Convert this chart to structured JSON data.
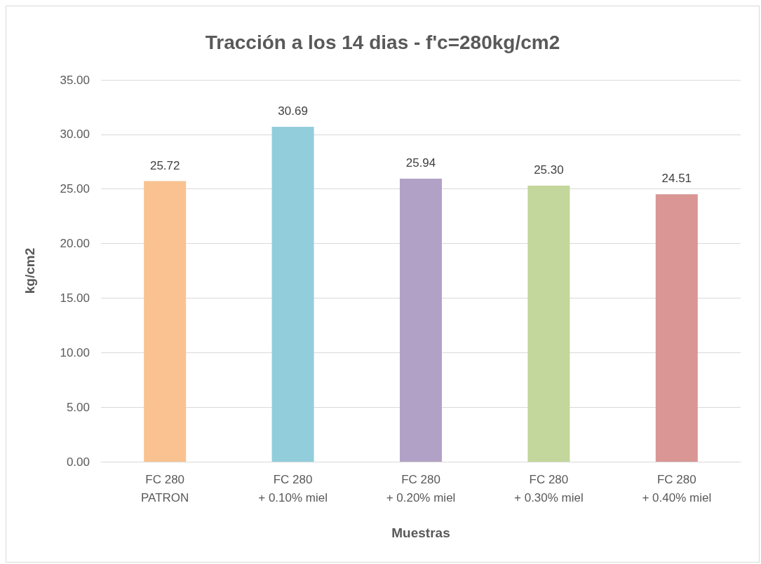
{
  "chart_data": {
    "type": "bar",
    "title": "Tracción a los 14 dias - f'c=280kg/cm2",
    "xlabel": "Muestras",
    "ylabel": "kg/cm2",
    "categories": [
      "FC 280\nPATRON",
      "FC 280\n+ 0.10% miel",
      "FC 280\n+ 0.20% miel",
      "FC 280\n+ 0.30% miel",
      "FC 280\n+ 0.40% miel"
    ],
    "values": [
      25.72,
      30.69,
      25.94,
      25.3,
      24.51
    ],
    "value_labels": [
      "25.72",
      "30.69",
      "25.94",
      "25.30",
      "24.51"
    ],
    "colors": [
      "#f9c290",
      "#92cddc",
      "#b2a1c7",
      "#c3d69b",
      "#d99694"
    ],
    "ylim": [
      0,
      35
    ],
    "yticks": [
      {
        "value": 0,
        "label": "0.00"
      },
      {
        "value": 5,
        "label": "5.00"
      },
      {
        "value": 10,
        "label": "10.00"
      },
      {
        "value": 15,
        "label": "15.00"
      },
      {
        "value": 20,
        "label": "20.00"
      },
      {
        "value": 25,
        "label": "25.00"
      },
      {
        "value": 30,
        "label": "30.00"
      },
      {
        "value": 35,
        "label": "35.00"
      }
    ],
    "grid": "y"
  }
}
